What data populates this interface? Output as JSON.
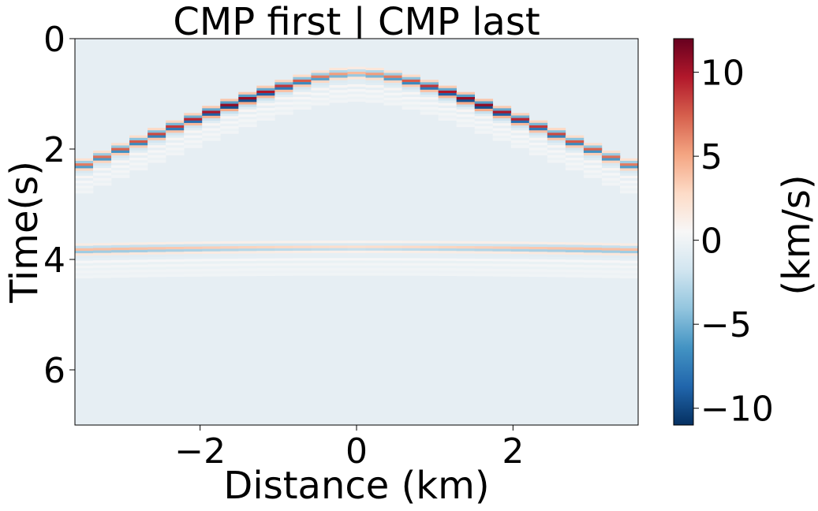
{
  "chart_data": {
    "type": "heatmap",
    "title": "CMP first | CMP last",
    "xlabel": "Distance (km)",
    "ylabel": "Time(s)",
    "xlim": [
      -3.6,
      3.6
    ],
    "ylim": [
      7.0,
      0.0
    ],
    "x_ticks": [
      {
        "value": -2,
        "label": "−2"
      },
      {
        "value": 0,
        "label": "0"
      },
      {
        "value": 2,
        "label": "2"
      }
    ],
    "y_ticks": [
      {
        "value": 0,
        "label": "0"
      },
      {
        "value": 2,
        "label": "2"
      },
      {
        "value": 4,
        "label": "4"
      },
      {
        "value": 6,
        "label": "6"
      }
    ],
    "colorbar": {
      "label": "(km/s)",
      "colormap": "RdBu_r",
      "vmin": -11.0,
      "vmax": 12.0,
      "ticks": [
        {
          "value": 10,
          "label": "10"
        },
        {
          "value": 5,
          "label": "5"
        },
        {
          "value": 0,
          "label": "0"
        },
        {
          "value": -5,
          "label": "−5"
        },
        {
          "value": -10,
          "label": "−10"
        }
      ]
    },
    "events": [
      {
        "t0": 0.6,
        "velocity_km_s": 1.6,
        "peak_amplitude": 12
      },
      {
        "t0": 3.75,
        "velocity_km_s": 5.8,
        "peak_amplitude": 4
      }
    ],
    "background_amplitude": -0.4,
    "traces": 31
  }
}
